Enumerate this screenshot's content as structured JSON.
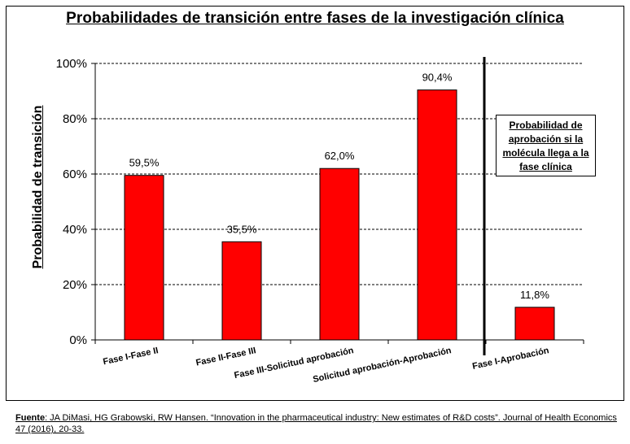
{
  "chart_data": {
    "type": "bar",
    "title": "Probabilidades de transición entre fases de la investigación clínica",
    "ylabel": "Probabilidad de transición",
    "xlabel": "",
    "ylim": [
      0,
      100
    ],
    "yticks": [
      0,
      20,
      40,
      60,
      80,
      100
    ],
    "ytick_labels": [
      "0%",
      "20%",
      "40%",
      "60%",
      "80%",
      "100%"
    ],
    "grid": "horizontal dashed",
    "categories": [
      "Fase I-Fase II",
      "Fase II-Fase III",
      "Fase III-Solicitud aprobación",
      "Solicitud aprobación-Aprobación",
      "Fase I-Aprobación"
    ],
    "values": [
      59.5,
      35.5,
      62.0,
      90.4,
      11.8
    ],
    "value_labels": [
      "59,5%",
      "35,5%",
      "62,0%",
      "90,4%",
      "11,8%"
    ],
    "bar_color": "#ff0000",
    "annotation": "Probabilidad de aprobación si la molécula llega a la fase clínica"
  },
  "source": {
    "label": "Fuente",
    "text": ": JA DiMasi, HG Grabowski, RW Hansen. “Innovation in the pharmaceutical industry: New estimates of R&D costs”. Journal of Health Economics 47 (2016), 20-33."
  }
}
